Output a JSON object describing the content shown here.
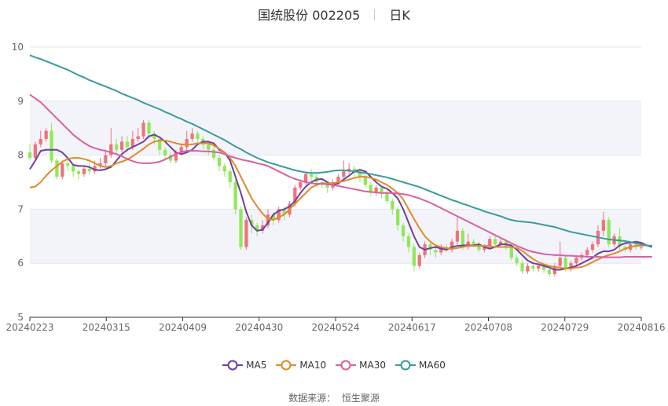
{
  "chart_data": {
    "type": "candlestick",
    "title": "国统股份 002205",
    "period_label": "日K",
    "source_prefix": "数据来源：",
    "source_name": "恒生聚源",
    "ylim": [
      5,
      10
    ],
    "y_ticks": [
      5,
      6,
      7,
      8,
      9,
      10
    ],
    "x_tick_labels": [
      "20240223",
      "20240315",
      "20240409",
      "20240430",
      "20240524",
      "20240617",
      "20240708",
      "20240729",
      "20240816"
    ],
    "legend_placement": "bottom",
    "series": [
      {
        "name": "MA5",
        "color": "#6f3fa0",
        "values": [
          7.74,
          7.9,
          8.08,
          8.1,
          8.1,
          8.1,
          8.05,
          7.95,
          7.82,
          7.8,
          7.8,
          7.78,
          7.73,
          7.72,
          7.74,
          7.78,
          7.9,
          8.02,
          8.1,
          8.15,
          8.2,
          8.25,
          8.35,
          8.38,
          8.33,
          8.25,
          8.15,
          8.05,
          8.02,
          8.05,
          8.1,
          8.2,
          8.25,
          8.25,
          8.22,
          8.1,
          8.05,
          7.9,
          7.6,
          7.3,
          6.95,
          6.7,
          6.6,
          6.62,
          6.75,
          6.9,
          6.97,
          7.0,
          7.05,
          7.15,
          7.3,
          7.42,
          7.5,
          7.55,
          7.56,
          7.5,
          7.45,
          7.48,
          7.55,
          7.62,
          7.7,
          7.73,
          7.7,
          7.6,
          7.5,
          7.42,
          7.38,
          7.3,
          7.2,
          7.0,
          6.75,
          6.5,
          6.3,
          6.25,
          6.28,
          6.3,
          6.27,
          6.25,
          6.3,
          6.32,
          6.33,
          6.33,
          6.33,
          6.35,
          6.3,
          6.27,
          6.3,
          6.35,
          6.35,
          6.33,
          6.25,
          6.15,
          6.05,
          6.0,
          5.98,
          5.95,
          5.92,
          5.88,
          5.88,
          5.9,
          5.92,
          5.95,
          6.0,
          6.05,
          6.1,
          6.18,
          6.22,
          6.22,
          6.25,
          6.33,
          6.37,
          6.38,
          6.4,
          6.38,
          6.33,
          6.3
        ]
      },
      {
        "name": "MA10",
        "color": "#e08a2a",
        "values": [
          7.4,
          7.42,
          7.5,
          7.62,
          7.72,
          7.8,
          7.88,
          7.93,
          7.95,
          7.95,
          7.93,
          7.9,
          7.85,
          7.8,
          7.78,
          7.8,
          7.85,
          7.88,
          7.92,
          7.98,
          8.05,
          8.12,
          8.2,
          8.25,
          8.27,
          8.27,
          8.25,
          8.22,
          8.2,
          8.2,
          8.2,
          8.22,
          8.22,
          8.22,
          8.18,
          8.12,
          8.05,
          7.95,
          7.8,
          7.6,
          7.4,
          7.2,
          7.05,
          6.92,
          6.82,
          6.8,
          6.85,
          6.9,
          7.0,
          7.1,
          7.2,
          7.3,
          7.4,
          7.45,
          7.48,
          7.48,
          7.48,
          7.5,
          7.52,
          7.55,
          7.58,
          7.6,
          7.6,
          7.58,
          7.55,
          7.5,
          7.45,
          7.38,
          7.3,
          7.18,
          7.0,
          6.82,
          6.65,
          6.5,
          6.4,
          6.33,
          6.3,
          6.28,
          6.27,
          6.28,
          6.3,
          6.32,
          6.32,
          6.32,
          6.32,
          6.32,
          6.3,
          6.3,
          6.3,
          6.3,
          6.28,
          6.23,
          6.15,
          6.08,
          6.02,
          5.98,
          5.95,
          5.93,
          5.92,
          5.9,
          5.9,
          5.92,
          5.93,
          5.97,
          6.02,
          6.07,
          6.12,
          6.15,
          6.18,
          6.22,
          6.27,
          6.3,
          6.32,
          6.33,
          6.33,
          6.32
        ]
      },
      {
        "name": "MA30",
        "color": "#d9609f",
        "values": [
          9.12,
          9.05,
          8.98,
          8.88,
          8.78,
          8.68,
          8.58,
          8.48,
          8.38,
          8.3,
          8.23,
          8.17,
          8.13,
          8.1,
          8.08,
          8.05,
          8.02,
          7.98,
          7.93,
          7.89,
          7.86,
          7.85,
          7.85,
          7.86,
          7.88,
          7.92,
          7.97,
          8.02,
          8.06,
          8.08,
          8.08,
          8.08,
          8.07,
          8.07,
          8.06,
          8.05,
          8.02,
          7.98,
          7.95,
          7.92,
          7.9,
          7.88,
          7.85,
          7.83,
          7.8,
          7.75,
          7.7,
          7.65,
          7.6,
          7.56,
          7.53,
          7.5,
          7.48,
          7.47,
          7.47,
          7.46,
          7.45,
          7.43,
          7.41,
          7.39,
          7.37,
          7.35,
          7.33,
          7.32,
          7.31,
          7.3,
          7.3,
          7.3,
          7.29,
          7.28,
          7.26,
          7.23,
          7.2,
          7.16,
          7.12,
          7.07,
          7.02,
          6.97,
          6.92,
          6.87,
          6.82,
          6.77,
          6.72,
          6.67,
          6.62,
          6.57,
          6.52,
          6.47,
          6.42,
          6.37,
          6.32,
          6.28,
          6.24,
          6.21,
          6.19,
          6.17,
          6.16,
          6.15,
          6.15,
          6.14,
          6.14,
          6.13,
          6.13,
          6.12,
          6.12,
          6.12,
          6.11,
          6.11,
          6.11,
          6.11,
          6.12,
          6.12,
          6.12,
          6.12,
          6.12,
          6.12
        ]
      },
      {
        "name": "MA60",
        "color": "#3a9a9c",
        "values": [
          9.85,
          9.81,
          9.78,
          9.74,
          9.7,
          9.66,
          9.62,
          9.58,
          9.53,
          9.48,
          9.44,
          9.39,
          9.35,
          9.31,
          9.27,
          9.23,
          9.19,
          9.14,
          9.1,
          9.06,
          9.02,
          8.97,
          8.93,
          8.89,
          8.85,
          8.8,
          8.76,
          8.71,
          8.67,
          8.62,
          8.58,
          8.53,
          8.48,
          8.43,
          8.38,
          8.33,
          8.28,
          8.22,
          8.16,
          8.11,
          8.05,
          8.0,
          7.95,
          7.91,
          7.87,
          7.84,
          7.81,
          7.78,
          7.75,
          7.72,
          7.7,
          7.68,
          7.67,
          7.67,
          7.68,
          7.69,
          7.71,
          7.72,
          7.72,
          7.71,
          7.7,
          7.68,
          7.67,
          7.65,
          7.63,
          7.61,
          7.59,
          7.56,
          7.53,
          7.5,
          7.47,
          7.44,
          7.41,
          7.37,
          7.33,
          7.29,
          7.25,
          7.21,
          7.17,
          7.14,
          7.1,
          7.07,
          7.03,
          7.0,
          6.96,
          6.93,
          6.9,
          6.87,
          6.83,
          6.8,
          6.78,
          6.77,
          6.76,
          6.75,
          6.73,
          6.71,
          6.69,
          6.67,
          6.64,
          6.61,
          6.58,
          6.56,
          6.54,
          6.52,
          6.5,
          6.48,
          6.46,
          6.44,
          6.43,
          6.42,
          6.41,
          6.39,
          6.37,
          6.35,
          6.33,
          6.32
        ]
      }
    ],
    "candles": [
      [
        8.05,
        7.95,
        8.2,
        7.9
      ],
      [
        7.95,
        8.2,
        8.25,
        7.9
      ],
      [
        8.2,
        8.3,
        8.45,
        8.15
      ],
      [
        8.3,
        8.45,
        8.5,
        8.25
      ],
      [
        8.45,
        7.9,
        8.6,
        7.85
      ],
      [
        7.9,
        7.6,
        7.95,
        7.55
      ],
      [
        7.6,
        7.85,
        7.9,
        7.55
      ],
      [
        7.85,
        7.8,
        7.95,
        7.7
      ],
      [
        7.8,
        7.7,
        7.85,
        7.6
      ],
      [
        7.7,
        7.65,
        7.75,
        7.55
      ],
      [
        7.65,
        7.75,
        7.8,
        7.6
      ],
      [
        7.75,
        7.7,
        7.85,
        7.65
      ],
      [
        7.7,
        7.8,
        7.9,
        7.65
      ],
      [
        7.8,
        7.85,
        7.95,
        7.75
      ],
      [
        7.85,
        8.0,
        8.1,
        7.8
      ],
      [
        8.0,
        8.2,
        8.5,
        7.95
      ],
      [
        8.2,
        8.1,
        8.3,
        8.0
      ],
      [
        8.1,
        8.25,
        8.35,
        8.05
      ],
      [
        8.25,
        8.15,
        8.35,
        8.05
      ],
      [
        8.15,
        8.3,
        8.45,
        8.1
      ],
      [
        8.3,
        8.35,
        8.5,
        8.25
      ],
      [
        8.35,
        8.6,
        8.65,
        8.3
      ],
      [
        8.6,
        8.4,
        8.65,
        8.3
      ],
      [
        8.4,
        8.3,
        8.45,
        8.2
      ],
      [
        8.3,
        8.1,
        8.35,
        8.0
      ],
      [
        8.1,
        8.0,
        8.15,
        7.9
      ],
      [
        8.0,
        7.9,
        8.05,
        7.85
      ],
      [
        7.9,
        8.05,
        8.1,
        7.85
      ],
      [
        8.05,
        8.15,
        8.2,
        8.0
      ],
      [
        8.15,
        8.3,
        8.45,
        8.1
      ],
      [
        8.3,
        8.4,
        8.5,
        8.25
      ],
      [
        8.4,
        8.3,
        8.45,
        8.2
      ],
      [
        8.3,
        8.2,
        8.35,
        8.1
      ],
      [
        8.2,
        8.1,
        8.25,
        8.0
      ],
      [
        8.1,
        7.95,
        8.2,
        7.9
      ],
      [
        7.95,
        7.8,
        8.0,
        7.7
      ],
      [
        7.8,
        7.7,
        7.85,
        7.6
      ],
      [
        7.7,
        7.5,
        7.75,
        7.4
      ],
      [
        7.5,
        7.0,
        7.55,
        6.9
      ],
      [
        7.0,
        6.3,
        7.05,
        6.25
      ],
      [
        6.3,
        6.8,
        6.85,
        6.25
      ],
      [
        6.8,
        6.7,
        6.9,
        6.55
      ],
      [
        6.7,
        6.6,
        6.75,
        6.5
      ],
      [
        6.6,
        6.7,
        6.8,
        6.55
      ],
      [
        6.7,
        6.9,
        7.0,
        6.65
      ],
      [
        6.9,
        6.8,
        6.95,
        6.7
      ],
      [
        6.8,
        7.0,
        7.05,
        6.75
      ],
      [
        7.0,
        6.9,
        7.05,
        6.8
      ],
      [
        6.9,
        7.1,
        7.15,
        6.85
      ],
      [
        7.1,
        7.4,
        7.45,
        7.05
      ],
      [
        7.4,
        7.5,
        7.55,
        7.35
      ],
      [
        7.5,
        7.65,
        7.7,
        7.45
      ],
      [
        7.65,
        7.6,
        7.75,
        7.5
      ],
      [
        7.6,
        7.5,
        7.65,
        7.4
      ],
      [
        7.5,
        7.45,
        7.55,
        7.4
      ],
      [
        7.45,
        7.4,
        7.5,
        7.3
      ],
      [
        7.4,
        7.5,
        7.55,
        7.35
      ],
      [
        7.5,
        7.6,
        7.65,
        7.45
      ],
      [
        7.6,
        7.7,
        7.9,
        7.55
      ],
      [
        7.7,
        7.75,
        7.85,
        7.65
      ],
      [
        7.75,
        7.7,
        7.8,
        7.6
      ],
      [
        7.7,
        7.6,
        7.75,
        7.5
      ],
      [
        7.6,
        7.45,
        7.65,
        7.4
      ],
      [
        7.45,
        7.3,
        7.5,
        7.25
      ],
      [
        7.3,
        7.4,
        7.45,
        7.25
      ],
      [
        7.4,
        7.3,
        7.45,
        7.2
      ],
      [
        7.3,
        7.15,
        7.35,
        7.1
      ],
      [
        7.15,
        7.0,
        7.2,
        6.9
      ],
      [
        7.0,
        6.7,
        7.05,
        6.6
      ],
      [
        6.7,
        6.5,
        6.75,
        6.4
      ],
      [
        6.5,
        6.3,
        6.55,
        6.2
      ],
      [
        6.3,
        5.95,
        6.35,
        5.85
      ],
      [
        5.95,
        6.15,
        6.2,
        5.9
      ],
      [
        6.15,
        6.35,
        6.4,
        6.1
      ],
      [
        6.35,
        6.25,
        6.4,
        6.15
      ],
      [
        6.25,
        6.2,
        6.3,
        6.1
      ],
      [
        6.2,
        6.3,
        6.35,
        6.15
      ],
      [
        6.3,
        6.25,
        6.35,
        6.2
      ],
      [
        6.25,
        6.4,
        6.45,
        6.2
      ],
      [
        6.4,
        6.6,
        6.85,
        6.35
      ],
      [
        6.6,
        6.3,
        6.65,
        6.25
      ],
      [
        6.3,
        6.4,
        6.55,
        6.25
      ],
      [
        6.4,
        6.35,
        6.45,
        6.3
      ],
      [
        6.35,
        6.25,
        6.4,
        6.2
      ],
      [
        6.25,
        6.3,
        6.35,
        6.2
      ],
      [
        6.3,
        6.45,
        6.5,
        6.25
      ],
      [
        6.45,
        6.35,
        6.5,
        6.3
      ],
      [
        6.35,
        6.4,
        6.45,
        6.3
      ],
      [
        6.4,
        6.3,
        6.45,
        6.25
      ],
      [
        6.3,
        6.1,
        6.35,
        6.05
      ],
      [
        6.1,
        6.0,
        6.15,
        5.95
      ],
      [
        6.0,
        5.85,
        6.05,
        5.8
      ],
      [
        5.85,
        5.95,
        6.0,
        5.8
      ],
      [
        5.95,
        5.9,
        6.0,
        5.85
      ],
      [
        5.9,
        5.95,
        6.0,
        5.85
      ],
      [
        5.95,
        5.88,
        6.0,
        5.82
      ],
      [
        5.88,
        5.8,
        5.9,
        5.75
      ],
      [
        5.8,
        5.95,
        6.0,
        5.75
      ],
      [
        5.95,
        6.1,
        6.4,
        5.9
      ],
      [
        6.1,
        5.9,
        6.15,
        5.85
      ],
      [
        5.9,
        6.0,
        6.05,
        5.85
      ],
      [
        6.0,
        6.1,
        6.15,
        5.95
      ],
      [
        6.1,
        6.15,
        6.2,
        6.05
      ],
      [
        6.15,
        6.25,
        6.3,
        6.1
      ],
      [
        6.25,
        6.35,
        6.4,
        6.2
      ],
      [
        6.35,
        6.6,
        6.7,
        6.3
      ],
      [
        6.6,
        6.8,
        6.95,
        6.5
      ],
      [
        6.8,
        6.35,
        6.85,
        6.3
      ],
      [
        6.35,
        6.5,
        6.55,
        6.3
      ],
      [
        6.5,
        6.3,
        6.65,
        6.25
      ],
      [
        6.3,
        6.25,
        6.35,
        6.2
      ],
      [
        6.25,
        6.35,
        6.4,
        6.2
      ],
      [
        6.35,
        6.3,
        6.4,
        6.25
      ],
      [
        6.3,
        6.3,
        6.35,
        6.25
      ]
    ]
  }
}
